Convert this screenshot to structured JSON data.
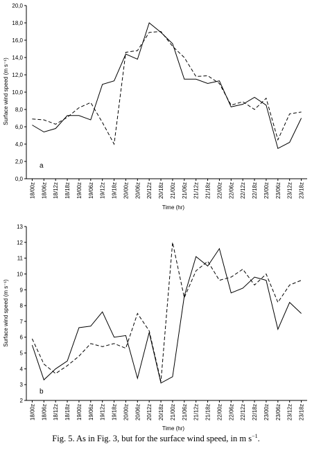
{
  "caption": {
    "text": "Fig. 5. As in Fig. 3, but for the surface wind speed, in m s",
    "sup": "−1",
    "end": "."
  },
  "chart_data": [
    {
      "type": "line",
      "panel_label": "a",
      "xlabel": "Time (hr)",
      "ylabel": "Surface wind speed (m s⁻¹)",
      "categories": [
        "18/00z",
        "18/06z",
        "18/12z",
        "18/18z",
        "19/00z",
        "19/06z",
        "19/12z",
        "19/18z",
        "20/00z",
        "20/06z",
        "20/12z",
        "20/18z",
        "21/00z",
        "21/06z",
        "21/12z",
        "21/18z",
        "22/00z",
        "22/06z",
        "22/12z",
        "22/18z",
        "23/00z",
        "23/06z",
        "23/12z",
        "23/18z"
      ],
      "ylim": [
        0,
        20
      ],
      "yticks": [
        "0,0",
        "2,0",
        "4,0",
        "6,0",
        "8,0",
        "10,0",
        "12,0",
        "14,0",
        "16,0",
        "18,0",
        "20,0"
      ],
      "series": [
        {
          "style": "solid",
          "values": [
            6.2,
            5.4,
            5.8,
            7.3,
            7.3,
            6.8,
            10.9,
            11.3,
            14.4,
            13.8,
            18.0,
            16.9,
            15.6,
            11.5,
            11.5,
            11.0,
            11.3,
            8.3,
            8.6,
            9.4,
            8.5,
            3.5,
            4.2,
            7.0
          ]
        },
        {
          "style": "dashed",
          "values": [
            6.9,
            6.8,
            6.3,
            7.1,
            8.2,
            8.8,
            6.5,
            4.0,
            14.6,
            14.8,
            16.9,
            17.0,
            15.3,
            14.0,
            11.8,
            11.9,
            11.0,
            8.5,
            8.9,
            8.0,
            9.3,
            4.5,
            7.5,
            7.7
          ]
        }
      ]
    },
    {
      "type": "line",
      "panel_label": "b",
      "xlabel": "Time (hr)",
      "ylabel": "Surface wind speed (m s⁻¹)",
      "categories": [
        "18/00z",
        "18/06z",
        "18/12z",
        "18/18z",
        "19/00z",
        "19/06z",
        "19/12z",
        "19/18z",
        "20/00z",
        "20/06z",
        "20/12z",
        "20/18z",
        "21/00z",
        "21/06z",
        "21/12z",
        "21/18z",
        "22/00z",
        "22/06z",
        "22/12z",
        "22/18z",
        "23/00z",
        "23/06z",
        "23/12z",
        "23/18z"
      ],
      "ylim": [
        2,
        13
      ],
      "yticks": [
        "2",
        "3",
        "4",
        "5",
        "6",
        "7",
        "8",
        "9",
        "10",
        "11",
        "12",
        "13"
      ],
      "series": [
        {
          "style": "solid",
          "values": [
            5.5,
            3.3,
            4.0,
            4.5,
            6.6,
            6.7,
            7.6,
            6.0,
            6.1,
            3.4,
            6.3,
            3.1,
            3.5,
            8.6,
            11.1,
            10.5,
            11.6,
            8.8,
            9.1,
            9.8,
            9.6,
            6.5,
            8.2,
            7.5
          ]
        },
        {
          "style": "dashed",
          "values": [
            5.9,
            4.3,
            3.7,
            4.2,
            4.8,
            5.6,
            5.4,
            5.6,
            5.3,
            7.5,
            6.4,
            3.2,
            12.0,
            8.5,
            10.2,
            10.8,
            9.6,
            9.8,
            10.3,
            9.3,
            10.0,
            8.2,
            9.3,
            9.6
          ]
        }
      ]
    }
  ]
}
